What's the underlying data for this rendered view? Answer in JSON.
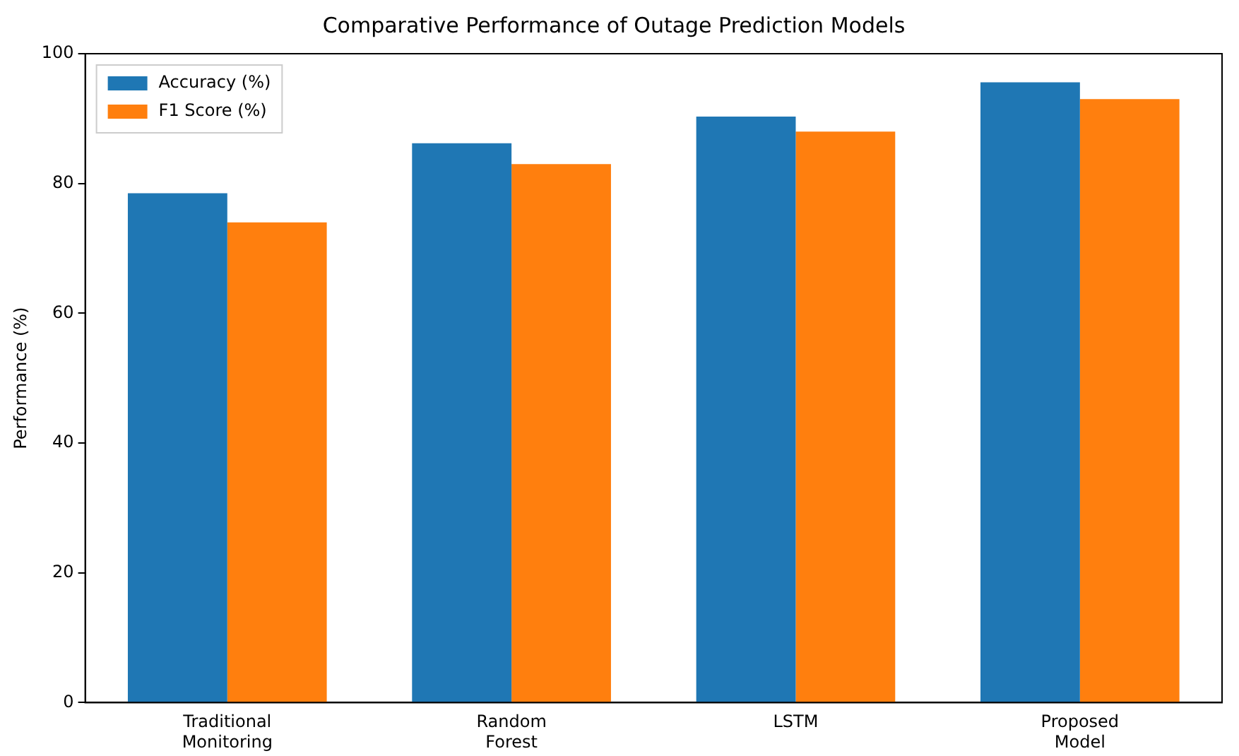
{
  "chart_data": {
    "type": "bar",
    "title": "Comparative Performance of Outage Prediction Models",
    "ylabel": "Performance (%)",
    "categories": [
      "Traditional Monitoring",
      "Random Forest",
      "LSTM",
      "Proposed Model"
    ],
    "series": [
      {
        "name": "Accuracy (%)",
        "color": "#1f77b4",
        "values": [
          78.5,
          86.2,
          90.3,
          95.6
        ]
      },
      {
        "name": "F1 Score (%)",
        "color": "#ff7f0e",
        "values": [
          74,
          83,
          88,
          93
        ]
      }
    ],
    "ylim": [
      0,
      100
    ],
    "yticks": [
      0,
      20,
      40,
      60,
      80,
      100
    ],
    "grid": false,
    "legend": "top left"
  }
}
